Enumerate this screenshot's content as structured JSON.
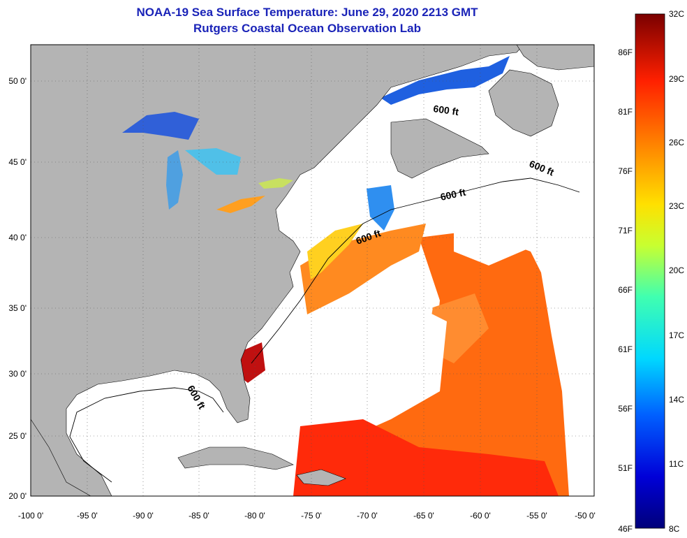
{
  "header": {
    "title": "NOAA-19 Sea Surface Temperature:  June 29, 2020 2213 GMT",
    "subtitle": "Rutgers Coastal Ocean Observation Lab"
  },
  "map": {
    "lat_labels": [
      "50 0'",
      "45 0'",
      "40 0'",
      "35 0'",
      "30 0'",
      "25 0'",
      "20 0'"
    ],
    "lon_labels": [
      "-100 0'",
      "-95 0'",
      "-90 0'",
      "-85 0'",
      "-80 0'",
      "-75 0'",
      "-70 0'",
      "-65 0'",
      "-60 0'",
      "-55 0'",
      "-50 0'"
    ],
    "depth_contour_labels": [
      "600 ft",
      "600 ft",
      "600 ft",
      "600 ft",
      "600 ft"
    ],
    "land_color": "#b4b4b4",
    "cloud_color": "#ffffff"
  },
  "colorbar": {
    "celsius_labels": [
      "32C",
      "29C",
      "26C",
      "23C",
      "20C",
      "17C",
      "14C",
      "11C",
      "8C"
    ],
    "fahrenheit_labels": [
      "86F",
      "81F",
      "76F",
      "71F",
      "66F",
      "61F",
      "56F",
      "51F",
      "46F"
    ]
  }
}
